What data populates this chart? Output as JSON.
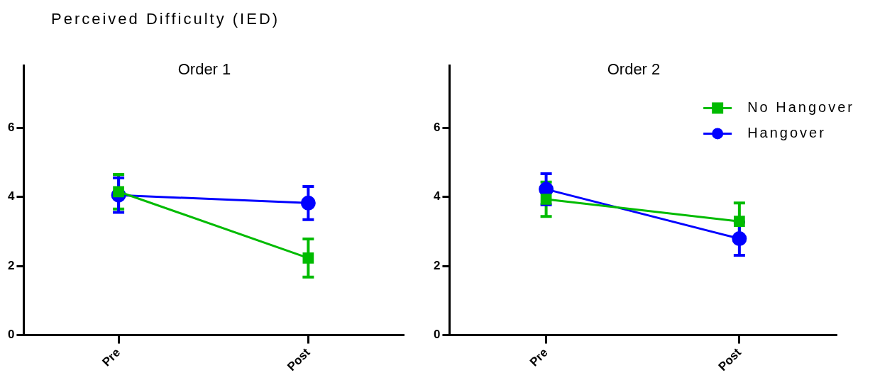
{
  "chart_data": [
    {
      "type": "line",
      "title": "Perceived Difficulty (IED)",
      "subtitle": "Order 1",
      "categories": [
        "Pre",
        "Post"
      ],
      "ylim": [
        0,
        7.8
      ],
      "yticks": [
        0,
        2,
        4,
        6
      ],
      "grid": false,
      "legend": false,
      "series": [
        {
          "color": "#00bb00",
          "marker": "square",
          "values": [
            4.15,
            2.23
          ],
          "errors": [
            0.5,
            0.55
          ]
        },
        {
          "color": "#0000ff",
          "marker": "circle",
          "values": [
            4.05,
            3.82
          ],
          "errors": [
            0.5,
            0.48
          ]
        }
      ]
    },
    {
      "type": "line",
      "subtitle": "Order 2",
      "categories": [
        "Pre",
        "Post"
      ],
      "ylim": [
        0,
        7.8
      ],
      "yticks": [
        0,
        2,
        4,
        6
      ],
      "grid": false,
      "legend": "top right",
      "series": [
        {
          "name": "No Hangover",
          "color": "#00bb00",
          "marker": "square",
          "values": [
            3.93,
            3.29
          ],
          "errors": [
            0.5,
            0.53
          ]
        },
        {
          "name": "Hangover",
          "color": "#0000ff",
          "marker": "circle",
          "values": [
            4.22,
            2.79
          ],
          "errors": [
            0.45,
            0.48
          ]
        }
      ]
    }
  ]
}
